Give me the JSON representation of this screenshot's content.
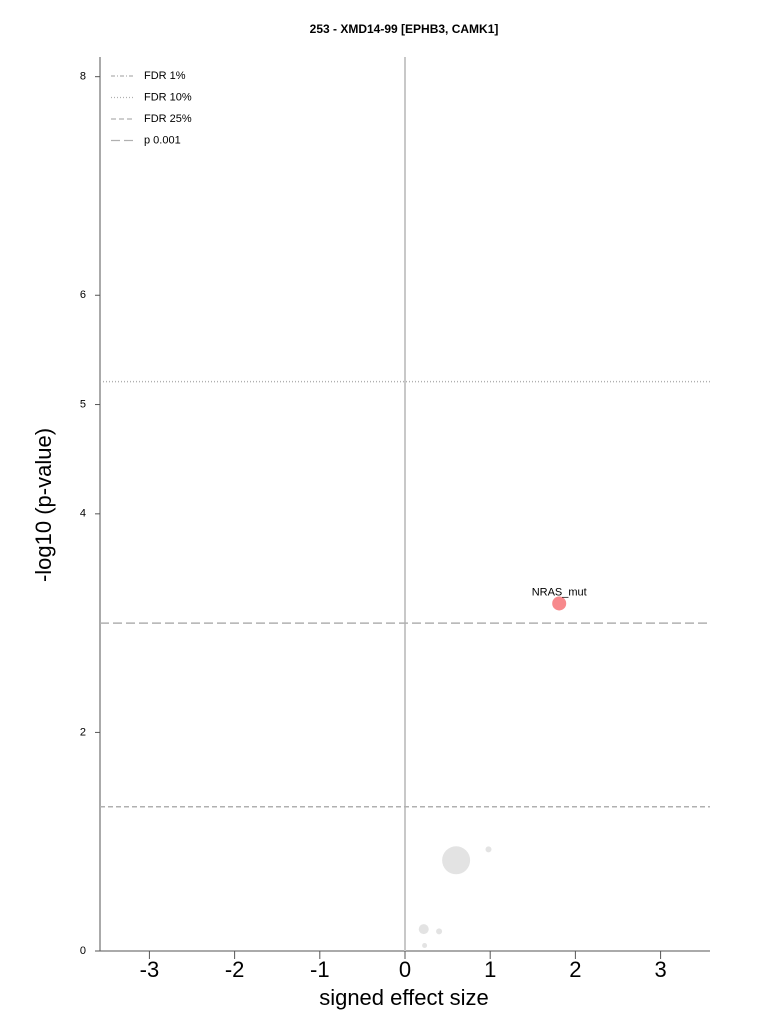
{
  "chart_data": {
    "type": "scatter",
    "title": "253 - XMD14-99 [EPHB3, CAMK1]",
    "x_label": "signed effect size",
    "y_label": "-log10 (p-value)",
    "xlim": [
      -3.58,
      3.58
    ],
    "ylim": [
      0,
      8.18
    ],
    "xticks": [
      -3,
      -2,
      -1,
      0,
      1,
      2,
      3
    ],
    "yticks": [
      0,
      2,
      4,
      5,
      6,
      8
    ],
    "vlines": [
      0
    ],
    "thresholds": [
      {
        "name": "FDR 1%",
        "value": null,
        "dash": "4,2,1,2"
      },
      {
        "name": "FDR 10%",
        "value": 5.21,
        "dash": "1,2"
      },
      {
        "name": "FDR 25%",
        "value": 1.32,
        "dash": "5,3"
      },
      {
        "name": "p 0.001",
        "value": 3.0,
        "dash": "9,4"
      }
    ],
    "legend_position": "upper left",
    "x": [
      1.81,
      0.6,
      0.98,
      0.22,
      0.4,
      0.23
    ],
    "values": [
      3.18,
      0.83,
      0.93,
      0.2,
      0.18,
      0.05
    ],
    "sizes": [
      7,
      14,
      3,
      5,
      3,
      2.5
    ],
    "colors": [
      "#f7898c",
      "#e3e3e3",
      "#e3e3e3",
      "#e3e3e3",
      "#e3e3e3",
      "#e3e3e3"
    ],
    "point_labels": [
      "NRAS_mut",
      null,
      null,
      null,
      null,
      null
    ]
  }
}
